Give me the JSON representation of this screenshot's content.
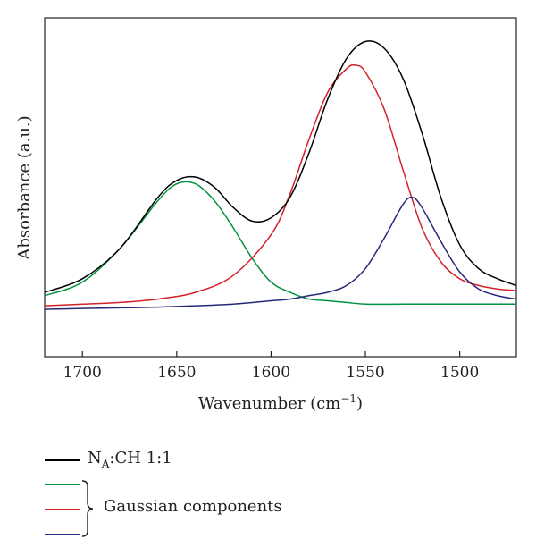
{
  "chart_data": {
    "type": "line",
    "xlabel_main": "Wavenumber (cm",
    "xlabel_sup": "−1",
    "xlabel_end": ")",
    "ylabel": "Absorbance (a.u.)",
    "xlim": [
      1720,
      1470
    ],
    "ylim": [
      0,
      1
    ],
    "x_reversed": true,
    "x_ticks": [
      1700,
      1650,
      1600,
      1550,
      1500
    ],
    "grid": false,
    "legend_position": "below",
    "series": [
      {
        "name": "NA:CH 1:1",
        "color": "#000000",
        "x": [
          1720,
          1700,
          1680,
          1660,
          1650,
          1640,
          1630,
          1620,
          1610,
          1600,
          1590,
          1580,
          1570,
          1560,
          1550,
          1540,
          1530,
          1520,
          1510,
          1500,
          1490,
          1480,
          1470
        ],
        "y": [
          0.19,
          0.23,
          0.32,
          0.47,
          0.52,
          0.53,
          0.5,
          0.44,
          0.4,
          0.41,
          0.47,
          0.6,
          0.76,
          0.88,
          0.93,
          0.91,
          0.82,
          0.66,
          0.47,
          0.33,
          0.26,
          0.23,
          0.21
        ]
      },
      {
        "name": "",
        "color": "#00923f",
        "x": [
          1720,
          1700,
          1680,
          1660,
          1650,
          1640,
          1630,
          1620,
          1610,
          1600,
          1590,
          1580,
          1570,
          1560,
          1550,
          1530,
          1510,
          1490,
          1470
        ],
        "y": [
          0.18,
          0.22,
          0.32,
          0.46,
          0.51,
          0.51,
          0.46,
          0.38,
          0.29,
          0.22,
          0.19,
          0.17,
          0.165,
          0.16,
          0.155,
          0.155,
          0.155,
          0.155,
          0.155
        ]
      },
      {
        "name": "",
        "color": "#d2232a",
        "x": [
          1720,
          1700,
          1680,
          1660,
          1640,
          1620,
          1600,
          1590,
          1580,
          1570,
          1560,
          1555,
          1550,
          1540,
          1530,
          1520,
          1510,
          1500,
          1490,
          1480,
          1470
        ],
        "y": [
          0.15,
          0.155,
          0.16,
          0.17,
          0.19,
          0.24,
          0.36,
          0.48,
          0.64,
          0.78,
          0.85,
          0.86,
          0.84,
          0.73,
          0.55,
          0.38,
          0.28,
          0.23,
          0.21,
          0.2,
          0.195
        ]
      },
      {
        "name": "",
        "color": "#262a79",
        "x": [
          1720,
          1700,
          1680,
          1660,
          1640,
          1620,
          1600,
          1590,
          1580,
          1570,
          1560,
          1550,
          1540,
          1530,
          1525,
          1520,
          1510,
          1500,
          1490,
          1480,
          1470
        ],
        "y": [
          0.14,
          0.142,
          0.144,
          0.146,
          0.15,
          0.155,
          0.165,
          0.17,
          0.18,
          0.19,
          0.21,
          0.26,
          0.35,
          0.45,
          0.47,
          0.44,
          0.34,
          0.25,
          0.2,
          0.18,
          0.17
        ]
      }
    ]
  },
  "legend": {
    "main_label_prefix": "N",
    "main_label_sub": "A",
    "main_label_suffix": ":CH 1:1",
    "group_label": "Gaussian components"
  }
}
